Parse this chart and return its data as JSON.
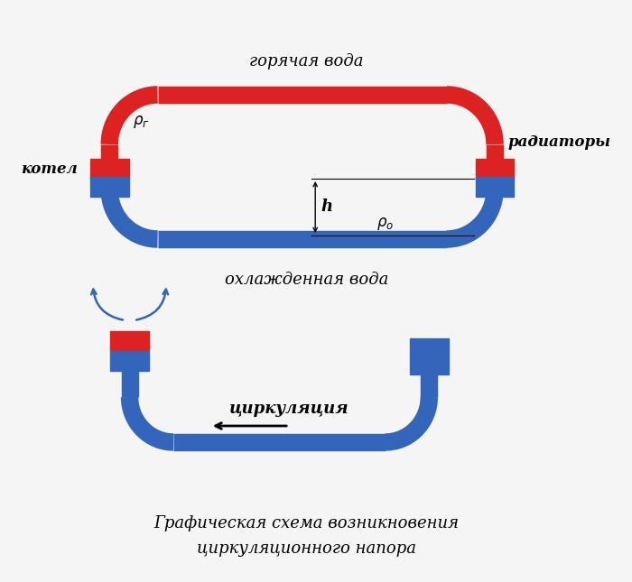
{
  "bg_color": "#f5f5f5",
  "red_color": "#dd2222",
  "blue_color": "#3366bb",
  "black_color": "#111111",
  "top_label": "горячая вода",
  "bottom_label": "охлажденная вода",
  "left_label": "котел",
  "right_label": "радиаторы",
  "h_label": "h",
  "circ_label": "циркуляция",
  "caption_line1": "Графическая схема возникновения",
  "caption_line2": "циркуляционного напора"
}
